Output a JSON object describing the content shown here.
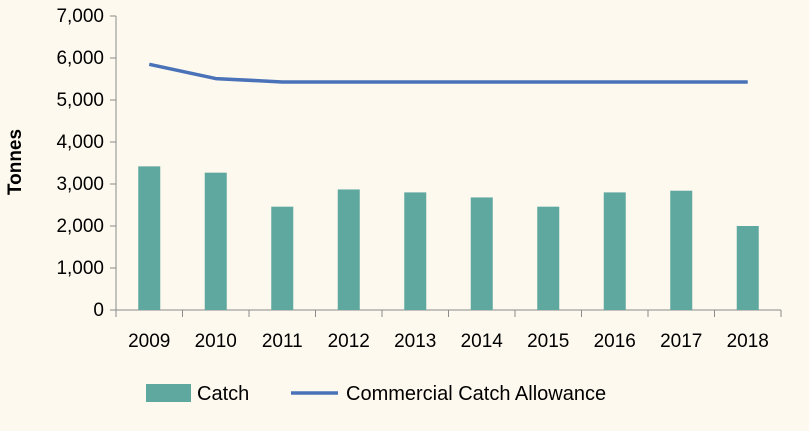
{
  "chart_data": {
    "type": "bar",
    "title": "",
    "xlabel": "",
    "ylabel": "Tonnes",
    "ylim": [
      0,
      7000
    ],
    "yticks": [
      "0",
      "1,000",
      "2,000",
      "3,000",
      "4,000",
      "5,000",
      "6,000",
      "7,000"
    ],
    "categories": [
      "2009",
      "2010",
      "2011",
      "2012",
      "2013",
      "2014",
      "2015",
      "2016",
      "2017",
      "2018"
    ],
    "grid": false,
    "legend_position": "bottom",
    "series": [
      {
        "name": "Catch",
        "type": "bar",
        "color": "#5fa8a0",
        "values": [
          3420,
          3270,
          2460,
          2870,
          2800,
          2680,
          2460,
          2800,
          2840,
          2000
        ]
      },
      {
        "name": "Commercial Catch Allowance",
        "type": "line",
        "color": "#4a72b8",
        "values": [
          5850,
          5510,
          5430,
          5430,
          5430,
          5430,
          5430,
          5430,
          5430,
          5430
        ]
      }
    ]
  }
}
